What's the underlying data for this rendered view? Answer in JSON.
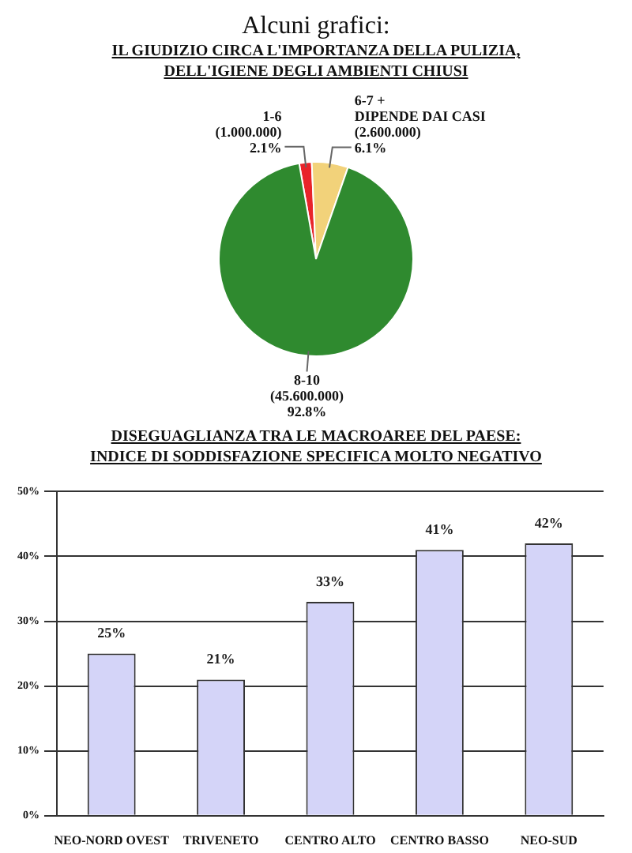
{
  "chart_data": [
    {
      "type": "pie",
      "title": "Alcuni grafici:",
      "subtitle": "IL GIUDIZIO CIRCA L'IMPORTANZA DELLA PULIZIA,\nDELL'IGIENE DEGLI AMBIENTI CHIUSI",
      "categories": [
        "1-6",
        "6-7 +\nDIPENDE DAI CASI",
        "8-10"
      ],
      "values": [
        2.1,
        6.1,
        92.8
      ],
      "value_labels": [
        "(1.000.000)\n2.1%",
        "(2.600.000)\n6.1%",
        "(45.600.000)\n92.8%"
      ],
      "colors": [
        "#e8242a",
        "#f2d27a",
        "#2f8a2f"
      ],
      "legend": false
    },
    {
      "type": "bar",
      "title": "DISEGUAGLIANZA TRA LE MACROAREE DEL PAESE:\nINDICE DI SODDISFAZIONE SPECIFICA MOLTO NEGATIVO",
      "categories": [
        "NEO-NORD OVEST",
        "TRIVENETO",
        "CENTRO ALTO",
        "CENTRO BASSO",
        "NEO-SUD"
      ],
      "values": [
        25,
        21,
        33,
        41,
        42
      ],
      "value_labels": [
        "25%",
        "21%",
        "33%",
        "41%",
        "42%"
      ],
      "color": "#d4d4f8",
      "ylim": [
        0,
        50
      ],
      "yticks": [
        {
          "value": 0,
          "label": "0%"
        },
        {
          "value": 10,
          "label": "10%"
        },
        {
          "value": 20,
          "label": "20%"
        },
        {
          "value": 30,
          "label": "30%"
        },
        {
          "value": 40,
          "label": "40%"
        },
        {
          "value": 50,
          "label": "50%"
        }
      ],
      "grid": "y",
      "legend": false
    }
  ]
}
